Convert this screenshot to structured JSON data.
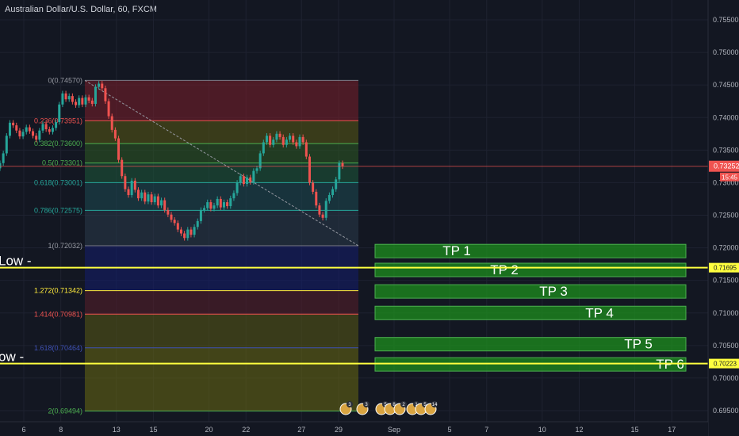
{
  "header": {
    "title": "Australian Dollar/U.S. Dollar, 60, FXCM"
  },
  "colors": {
    "background": "#131722",
    "grid": "#1e2230",
    "bull": "#26a69a",
    "bear": "#ef5350",
    "yellow_line": "#ffff3f",
    "tp_fill": "#1e8f1e",
    "tp_border": "#4caf50",
    "price_label": "#ef5350"
  },
  "chart_data": {
    "type": "candlestick",
    "symbol": "AUDUSD",
    "interval": "60",
    "ylim": [
      0.6945,
      0.7565
    ],
    "y_ticks": [
      "0.75500",
      "0.75000",
      "0.74500",
      "0.74000",
      "0.73500",
      "0.73000",
      "0.72500",
      "0.72000",
      "0.71500",
      "0.71000",
      "0.70500",
      "0.70000",
      "0.69500"
    ],
    "x_ticks": [
      {
        "label": "6",
        "x": 0
      },
      {
        "label": "8",
        "x": 2
      },
      {
        "label": "13",
        "x": 5
      },
      {
        "label": "15",
        "x": 7
      },
      {
        "label": "20",
        "x": 10
      },
      {
        "label": "22",
        "x": 12
      },
      {
        "label": "27",
        "x": 15
      },
      {
        "label": "29",
        "x": 17
      },
      {
        "label": "Sep",
        "x": 20
      },
      {
        "label": "5",
        "x": 23
      },
      {
        "label": "7",
        "x": 25
      },
      {
        "label": "10",
        "x": 28
      },
      {
        "label": "12",
        "x": 30
      },
      {
        "label": "15",
        "x": 33
      },
      {
        "label": "17",
        "x": 35
      }
    ],
    "current_price": "0.73252",
    "time_to_close": "15:45",
    "fib_levels": [
      {
        "ratio": "0",
        "price": 0.7457,
        "label": "0(0.74570)"
      },
      {
        "ratio": "0.236",
        "price": 0.73951,
        "label": "0.236(0.73951)"
      },
      {
        "ratio": "0.382",
        "price": 0.736,
        "label": "0.382(0.73600)"
      },
      {
        "ratio": "0.5",
        "price": 0.73301,
        "label": "0.5(0.73301)"
      },
      {
        "ratio": "0.618",
        "price": 0.73001,
        "label": "0.618(0.73001)"
      },
      {
        "ratio": "0.786",
        "price": 0.72575,
        "label": "0.786(0.72575)"
      },
      {
        "ratio": "1",
        "price": 0.72032,
        "label": "1(0.72032)"
      },
      {
        "ratio": "1.272",
        "price": 0.71342,
        "label": "1.272(0.71342)"
      },
      {
        "ratio": "1.414",
        "price": 0.70981,
        "label": "1.414(0.70981)"
      },
      {
        "ratio": "1.618",
        "price": 0.70464,
        "label": "1.618(0.70464)"
      },
      {
        "ratio": "2",
        "price": 0.69494,
        "label": "2(0.69494)"
      }
    ],
    "horizontal_lines": [
      {
        "label": "Low -",
        "price": 0.71695,
        "tag": "0.71695"
      },
      {
        "label": "ow -",
        "price": 0.70223,
        "tag": "0.70223"
      }
    ],
    "take_profits": [
      {
        "label": "TP 1",
        "price": 0.7195
      },
      {
        "label": "TP 2",
        "price": 0.7166
      },
      {
        "label": "TP 3",
        "price": 0.7133
      },
      {
        "label": "TP 4",
        "price": 0.71
      },
      {
        "label": "TP 5",
        "price": 0.7052
      },
      {
        "label": "TP 6",
        "price": 0.7021
      }
    ],
    "event_markers": [
      "3",
      "3",
      "5",
      "8",
      "2",
      "1",
      "5",
      "14"
    ],
    "closes": [
      0.733,
      0.7345,
      0.7372,
      0.7392,
      0.7388,
      0.738,
      0.7371,
      0.7378,
      0.7385,
      0.7379,
      0.7372,
      0.7366,
      0.738,
      0.739,
      0.7382,
      0.7378,
      0.7384,
      0.7393,
      0.742,
      0.7437,
      0.7428,
      0.7433,
      0.7424,
      0.7419,
      0.743,
      0.742,
      0.7431,
      0.7426,
      0.7421,
      0.7447,
      0.7452,
      0.7445,
      0.7425,
      0.7402,
      0.7381,
      0.7368,
      0.7335,
      0.731,
      0.729,
      0.7281,
      0.7303,
      0.7289,
      0.7276,
      0.7285,
      0.7271,
      0.7282,
      0.727,
      0.7279,
      0.7265,
      0.7273,
      0.7258,
      0.7251,
      0.7243,
      0.7238,
      0.7228,
      0.7222,
      0.7215,
      0.7228,
      0.722,
      0.7232,
      0.7241,
      0.7258,
      0.7261,
      0.727,
      0.726,
      0.7265,
      0.7275,
      0.7262,
      0.727,
      0.7264,
      0.7276,
      0.7284,
      0.73,
      0.731,
      0.7298,
      0.7308,
      0.7301,
      0.7318,
      0.7322,
      0.7345,
      0.7362,
      0.7372,
      0.7358,
      0.7366,
      0.7375,
      0.737,
      0.7358,
      0.7366,
      0.7372,
      0.7362,
      0.7356,
      0.737,
      0.7362,
      0.734,
      0.73,
      0.7286,
      0.7265,
      0.7251,
      0.7246,
      0.7272,
      0.7281,
      0.729,
      0.7305,
      0.733,
      0.7325
    ]
  }
}
